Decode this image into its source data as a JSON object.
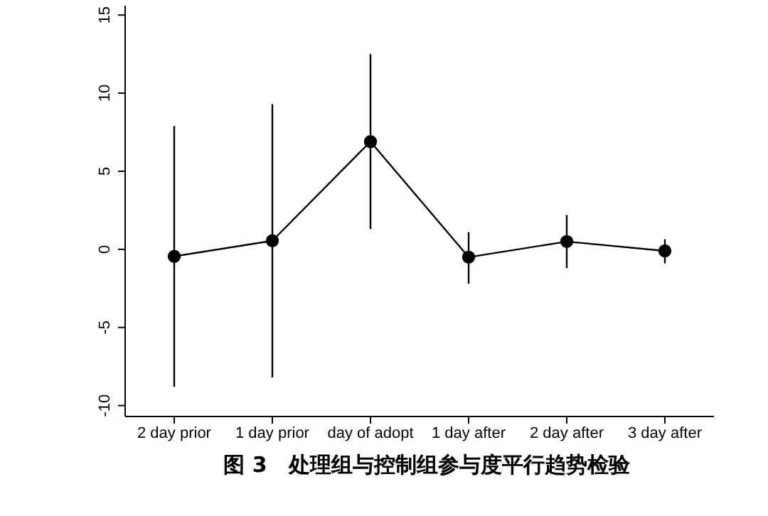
{
  "chart_data": {
    "type": "line",
    "title": "图 3　处理组与控制组参与度平行趋势检验",
    "categories": [
      "2 day prior",
      "1 day prior",
      "day of adopt",
      "1 day after",
      "2 day after",
      "3 day after"
    ],
    "series": [
      {
        "color": "#000000",
        "values": [
          -0.45,
          0.55,
          6.9,
          -0.5,
          0.5,
          -0.1
        ],
        "errors": [
          [
            -8.8,
            7.9
          ],
          [
            -8.2,
            9.3
          ],
          [
            1.3,
            12.5
          ],
          [
            -2.2,
            1.1
          ],
          [
            -1.2,
            2.2
          ],
          [
            -0.9,
            0.65
          ]
        ]
      }
    ],
    "ylim": [
      -10.7,
      15.6
    ],
    "yticks": [
      -10,
      -5,
      0,
      5,
      10,
      15
    ],
    "grid": false,
    "legend": false,
    "marker": "circle",
    "line_style": "solid"
  }
}
